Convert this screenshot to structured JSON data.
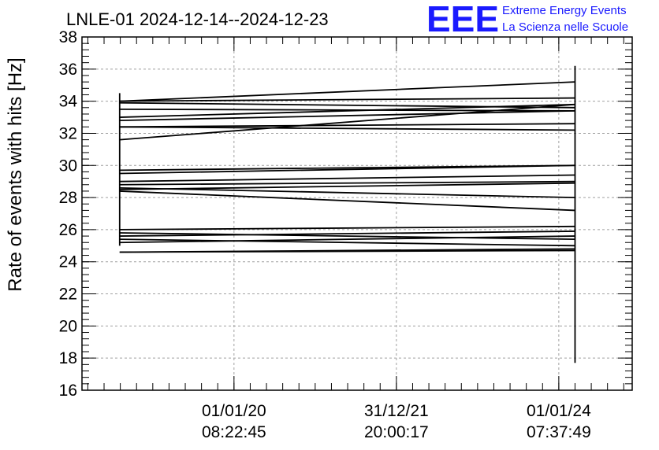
{
  "chart_data": {
    "type": "line",
    "title": "LNLE-01 2024-12-14--2024-12-23",
    "ylabel": "Rate of events with hits [Hz]",
    "xlabel": "",
    "ylim": [
      16,
      38
    ],
    "yticks": [
      16,
      18,
      20,
      22,
      24,
      26,
      28,
      30,
      32,
      34,
      36,
      38
    ],
    "grid": true,
    "xlim": [
      2017.66,
      2026.13
    ],
    "xticks": [
      {
        "x": 2020.0,
        "date": "01/01/20",
        "time": "08:22:45"
      },
      {
        "x": 2022.5,
        "date": "31/12/21",
        "time": "20:00:17"
      },
      {
        "x": 2025.0,
        "date": "01/01/24",
        "time": "07:37:49"
      }
    ],
    "x_start": 2018.24,
    "x_end": 2025.25,
    "series": [
      {
        "values": [
          34.0,
          35.2
        ]
      },
      {
        "values": [
          34.0,
          34.2
        ]
      },
      {
        "values": [
          33.9,
          33.6
        ]
      },
      {
        "values": [
          33.5,
          33.4
        ]
      },
      {
        "values": [
          33.0,
          33.8
        ]
      },
      {
        "values": [
          32.8,
          33.4
        ]
      },
      {
        "values": [
          32.4,
          32.6
        ]
      },
      {
        "values": [
          32.4,
          32.2
        ]
      },
      {
        "values": [
          31.6,
          33.8
        ]
      },
      {
        "values": [
          29.7,
          30.0
        ]
      },
      {
        "values": [
          29.5,
          30.0
        ]
      },
      {
        "values": [
          29.0,
          29.4
        ]
      },
      {
        "values": [
          28.8,
          29.0
        ]
      },
      {
        "values": [
          28.6,
          28.0
        ]
      },
      {
        "values": [
          28.5,
          28.9
        ]
      },
      {
        "values": [
          28.4,
          27.2
        ]
      },
      {
        "values": [
          26.0,
          26.2
        ]
      },
      {
        "values": [
          25.8,
          25.4
        ]
      },
      {
        "values": [
          25.6,
          25.9
        ]
      },
      {
        "values": [
          25.4,
          25.0
        ]
      },
      {
        "values": [
          25.2,
          25.6
        ]
      },
      {
        "values": [
          24.6,
          24.8
        ]
      },
      {
        "values": [
          24.6,
          24.7
        ]
      }
    ],
    "start_range": [
      25.0,
      34.5
    ],
    "end_range": [
      17.7,
      36.2
    ]
  },
  "logo": {
    "mark": "EEE",
    "line1": "Extreme Energy Events",
    "line2": "La Scienza nelle Scuole"
  },
  "colors": {
    "logo": "#1a1aff",
    "series": "#000000",
    "grid": "#a0a0a0"
  }
}
